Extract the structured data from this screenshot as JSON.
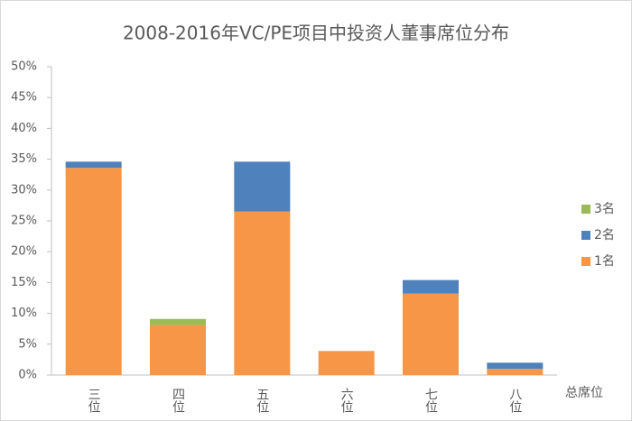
{
  "chart_data": {
    "type": "stacked_bar",
    "title": "2008-2016年VC/PE项目中投资人董事席位分布",
    "x_label": "总席位",
    "categories": [
      "三位",
      "四位",
      "五位",
      "六位",
      "七位",
      "八位"
    ],
    "series": [
      {
        "name": "1名",
        "color": "#f79646",
        "values": [
          33.6,
          8.1,
          26.5,
          3.9,
          13.2,
          1.0
        ]
      },
      {
        "name": "2名",
        "color": "#4f81bd",
        "values": [
          1.0,
          0,
          8.1,
          0,
          2.2,
          1.0
        ]
      },
      {
        "name": "3名",
        "color": "#9bbb59",
        "values": [
          0,
          1.0,
          0,
          0,
          0,
          0
        ]
      }
    ],
    "ylim": [
      0,
      50
    ],
    "yticks": [
      {
        "value": 0,
        "label": "0%"
      },
      {
        "value": 5,
        "label": "5%"
      },
      {
        "value": 10,
        "label": "10%"
      },
      {
        "value": 15,
        "label": "15%"
      },
      {
        "value": 20,
        "label": "20%"
      },
      {
        "value": 25,
        "label": "25%"
      },
      {
        "value": 30,
        "label": "30%"
      },
      {
        "value": 35,
        "label": "35%"
      },
      {
        "value": 40,
        "label": "40%"
      },
      {
        "value": 45,
        "label": "45%"
      },
      {
        "value": 50,
        "label": "50%"
      }
    ],
    "legend": "right"
  }
}
